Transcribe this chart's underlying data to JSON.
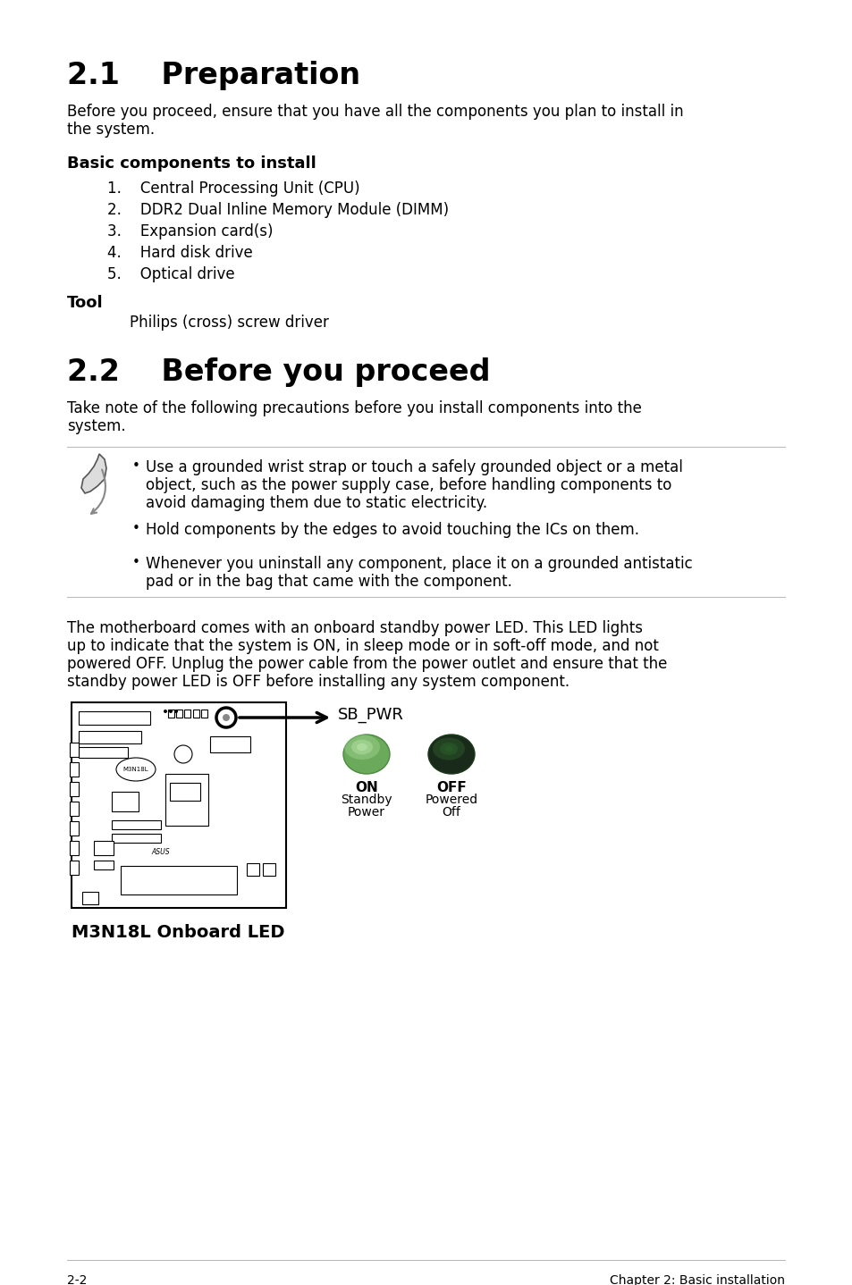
{
  "bg_color": "#ffffff",
  "section1_title": "2.1    Preparation",
  "section1_intro_line1": "Before you proceed, ensure that you have all the components you plan to install in",
  "section1_intro_line2": "the system.",
  "basic_components_label": "Basic components to install",
  "basic_components_list": [
    "1.    Central Processing Unit (CPU)",
    "2.    DDR2 Dual Inline Memory Module (DIMM)",
    "3.    Expansion card(s)",
    "4.    Hard disk drive",
    "5.    Optical drive"
  ],
  "tool_label": "Tool",
  "tool_text": "Philips (cross) screw driver",
  "section2_title": "2.2    Before you proceed",
  "section2_intro_line1": "Take note of the following precautions before you install components into the",
  "section2_intro_line2": "system.",
  "bullet1_line1": "Use a grounded wrist strap or touch a safely grounded object or a metal",
  "bullet1_line2": "object, such as the power supply case, before handling components to",
  "bullet1_line3": "avoid damaging them due to static electricity.",
  "bullet2": "Hold components by the edges to avoid touching the ICs on them.",
  "bullet3_line1": "Whenever you uninstall any component, place it on a grounded antistatic",
  "bullet3_line2": "pad or in the bag that came with the component.",
  "led_para_line1": "The motherboard comes with an onboard standby power LED. This LED lights",
  "led_para_line2": "up to indicate that the system is ON, in sleep mode or in soft-off mode, and not",
  "led_para_line3": "powered OFF. Unplug the power cable from the power outlet and ensure that the",
  "led_para_line4": "standby power LED is OFF before installing any system component.",
  "sb_pwr_label": "SB_PWR",
  "on_label": "ON",
  "on_sublabel1": "Standby",
  "on_sublabel2": "Power",
  "off_label": "OFF",
  "off_sublabel1": "Powered",
  "off_sublabel2": "Off",
  "board_label": "M3N18L Onboard LED",
  "footer_left": "2-2",
  "footer_right": "Chapter 2: Basic installation",
  "green_on_color": "#6aaa5a",
  "green_off_color": "#1a2a1a",
  "line_color": "#bbbbbb",
  "title_fontsize": 24,
  "body_fontsize": 12,
  "bold_label_fontsize": 13
}
